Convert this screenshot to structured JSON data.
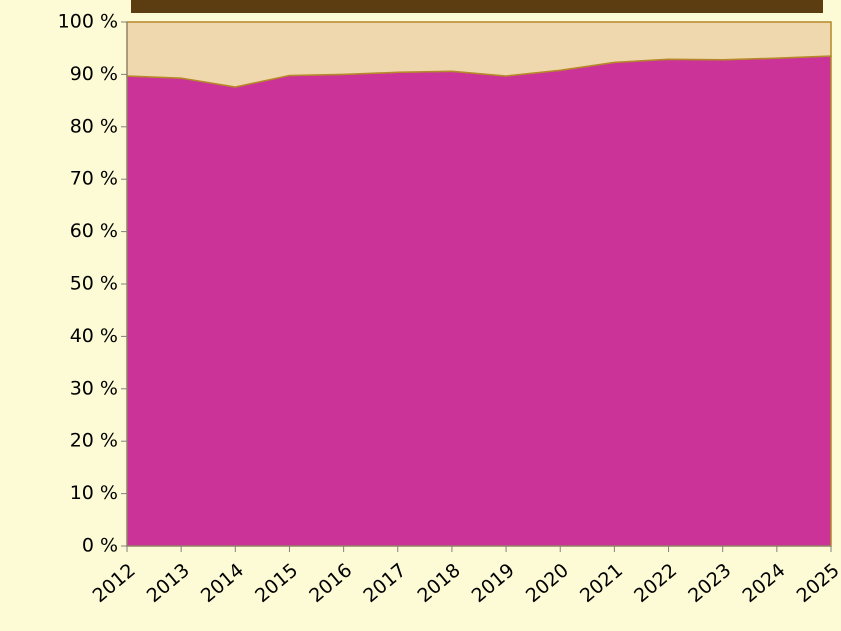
{
  "chart_data": {
    "type": "stacked_area",
    "categories": [
      "2012",
      "2013",
      "2014",
      "2015",
      "2016",
      "2017",
      "2018",
      "2019",
      "2020",
      "2021",
      "2022",
      "2023",
      "2024",
      "2025"
    ],
    "series": [
      {
        "color": "#cc3399",
        "values": [
          89.7,
          89.3,
          87.6,
          89.8,
          90.0,
          90.4,
          90.6,
          89.7,
          90.8,
          92.3,
          92.9,
          92.8,
          93.1,
          93.5
        ]
      },
      {
        "color": "#f0d8ae",
        "values": [
          10.3,
          10.7,
          12.4,
          10.2,
          10.0,
          9.6,
          9.4,
          10.3,
          9.2,
          7.7,
          7.1,
          7.2,
          6.9,
          6.5
        ]
      }
    ],
    "ylim": [
      0,
      100
    ],
    "yticks": [
      {
        "value": 0,
        "label": "0 %"
      },
      {
        "value": 10,
        "label": "10 %"
      },
      {
        "value": 20,
        "label": "20 %"
      },
      {
        "value": 30,
        "label": "30 %"
      },
      {
        "value": 40,
        "label": "40 %"
      },
      {
        "value": 50,
        "label": "50 %"
      },
      {
        "value": 60,
        "label": "60 %"
      },
      {
        "value": 70,
        "label": "70 %"
      },
      {
        "value": 80,
        "label": "80 %"
      },
      {
        "value": 90,
        "label": "90 %"
      },
      {
        "value": 100,
        "label": "100 %"
      }
    ]
  }
}
